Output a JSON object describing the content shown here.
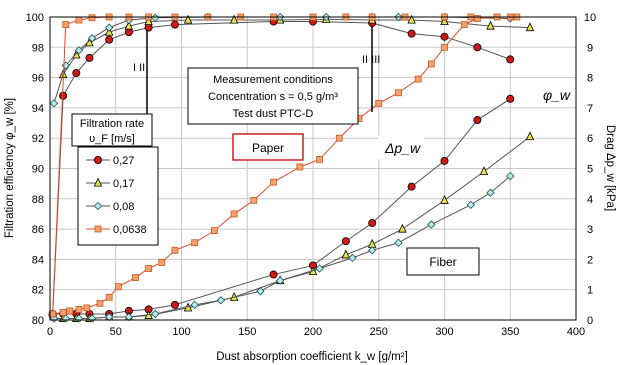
{
  "chart_data": {
    "type": "line",
    "xlabel": "Dust absorption coefficient k_w [g/m²]",
    "ylabel_left": "Filtration efficiency φ_w [%]",
    "ylabel_right": "Drag Δp_w [kPa]",
    "xlim": [
      0,
      400
    ],
    "ylim_left": [
      80,
      100
    ],
    "ylim_right": [
      0,
      10
    ],
    "x_ticks": [
      "0",
      "50",
      "100",
      "150",
      "200",
      "250",
      "300",
      "350",
      "400"
    ],
    "y_left_ticks": [
      "80",
      "82",
      "84",
      "86",
      "88",
      "90",
      "92",
      "94",
      "96",
      "98",
      "100"
    ],
    "y_right_ticks": [
      "0",
      "1",
      "2",
      "3",
      "4",
      "5",
      "6",
      "7",
      "8",
      "9",
      "10"
    ],
    "grid": true,
    "legend": {
      "title_line1": "Filtration rate",
      "title_line2": "υ_F [m/s]",
      "entries": [
        "0,27",
        "0,17",
        "0,08",
        "0,0638"
      ]
    },
    "annotations": {
      "conditions_line1": "Measurement conditions",
      "conditions_line2": "Concentration s = 0,5 g/m³",
      "conditions_line3": "Test dust PTC-D",
      "paper": "Paper",
      "fiber": "Fiber",
      "delta_p": "Δp_w",
      "phi": "φ_w",
      "marker_left": "I  II",
      "marker_right": "II III"
    },
    "series": [
      {
        "name": "0,27",
        "color": "#c00000",
        "marker": "circle",
        "efficiency": [
          [
            2,
            80.3
          ],
          [
            10,
            94.8
          ],
          [
            20,
            96.3
          ],
          [
            30,
            97.3
          ],
          [
            45,
            98.5
          ],
          [
            60,
            99.0
          ],
          [
            75,
            99.3
          ],
          [
            95,
            99.5
          ],
          [
            170,
            99.7
          ],
          [
            200,
            99.7
          ],
          [
            245,
            99.6
          ],
          [
            275,
            98.9
          ],
          [
            300,
            98.7
          ],
          [
            325,
            98.0
          ],
          [
            350,
            97.2
          ]
        ],
        "drag": [
          [
            2,
            0.2
          ],
          [
            10,
            0.2
          ],
          [
            20,
            0.2
          ],
          [
            30,
            0.2
          ],
          [
            45,
            0.2
          ],
          [
            60,
            0.3
          ],
          [
            75,
            0.35
          ],
          [
            95,
            0.5
          ],
          [
            170,
            1.5
          ],
          [
            200,
            1.8
          ],
          [
            225,
            2.6
          ],
          [
            245,
            3.2
          ],
          [
            275,
            4.4
          ],
          [
            300,
            5.25
          ],
          [
            325,
            6.6
          ],
          [
            350,
            7.3
          ]
        ]
      },
      {
        "name": "0,17",
        "color": "#a0a000",
        "marker": "triangle",
        "efficiency": [
          [
            10,
            96.2
          ],
          [
            20,
            97.5
          ],
          [
            30,
            98.3
          ],
          [
            45,
            99.0
          ],
          [
            60,
            99.4
          ],
          [
            75,
            99.7
          ],
          [
            105,
            99.8
          ],
          [
            140,
            99.8
          ],
          [
            175,
            99.8
          ],
          [
            210,
            99.85
          ],
          [
            245,
            99.8
          ],
          [
            275,
            99.8
          ],
          [
            300,
            99.7
          ],
          [
            335,
            99.4
          ],
          [
            365,
            99.3
          ]
        ],
        "drag": [
          [
            10,
            0.05
          ],
          [
            20,
            0.05
          ],
          [
            30,
            0.05
          ],
          [
            45,
            0.1
          ],
          [
            60,
            0.1
          ],
          [
            75,
            0.15
          ],
          [
            105,
            0.4
          ],
          [
            140,
            0.75
          ],
          [
            175,
            1.3
          ],
          [
            200,
            1.6
          ],
          [
            225,
            2.15
          ],
          [
            245,
            2.5
          ],
          [
            268,
            3.0
          ],
          [
            300,
            3.95
          ],
          [
            330,
            4.9
          ],
          [
            365,
            6.05
          ]
        ]
      },
      {
        "name": "0,08",
        "color": "#2f6f6f",
        "marker": "diamond",
        "efficiency": [
          [
            3,
            94.3
          ],
          [
            12,
            96.8
          ],
          [
            22,
            97.8
          ],
          [
            32,
            98.6
          ],
          [
            45,
            99.3
          ],
          [
            60,
            99.8
          ],
          [
            80,
            99.95
          ],
          [
            120,
            100
          ],
          [
            175,
            100
          ],
          [
            210,
            100
          ],
          [
            245,
            100
          ],
          [
            265,
            100
          ],
          [
            300,
            100
          ],
          [
            350,
            99.9
          ]
        ],
        "drag": [
          [
            3,
            0.05
          ],
          [
            12,
            0.05
          ],
          [
            22,
            0.05
          ],
          [
            32,
            0.05
          ],
          [
            45,
            0.1
          ],
          [
            60,
            0.1
          ],
          [
            80,
            0.2
          ],
          [
            110,
            0.5
          ],
          [
            130,
            0.65
          ],
          [
            160,
            0.95
          ],
          [
            175,
            1.3
          ],
          [
            205,
            1.7
          ],
          [
            230,
            2.05
          ],
          [
            245,
            2.3
          ],
          [
            265,
            2.55
          ],
          [
            290,
            3.15
          ],
          [
            320,
            3.8
          ],
          [
            335,
            4.2
          ],
          [
            350,
            4.75
          ]
        ]
      },
      {
        "name": "0,0638",
        "color": "#e07b39",
        "marker": "square",
        "efficiency": [
          [
            2,
            80.4
          ],
          [
            12,
            99.5
          ],
          [
            22,
            99.8
          ],
          [
            32,
            99.95
          ],
          [
            45,
            100
          ],
          [
            60,
            100
          ],
          [
            75,
            100
          ],
          [
            95,
            100
          ],
          [
            120,
            100
          ],
          [
            145,
            100
          ],
          [
            170,
            100
          ],
          [
            200,
            100
          ],
          [
            225,
            100
          ],
          [
            245,
            100
          ],
          [
            270,
            100
          ],
          [
            300,
            100
          ],
          [
            320,
            100
          ],
          [
            350,
            100
          ]
        ],
        "drag": [
          [
            2,
            0.2
          ],
          [
            10,
            0.25
          ],
          [
            15,
            0.3
          ],
          [
            22,
            0.35
          ],
          [
            28,
            0.4
          ],
          [
            38,
            0.55
          ],
          [
            45,
            0.75
          ],
          [
            52,
            1.1
          ],
          [
            65,
            1.4
          ],
          [
            75,
            1.7
          ],
          [
            85,
            1.9
          ],
          [
            95,
            2.3
          ],
          [
            110,
            2.55
          ],
          [
            125,
            2.95
          ],
          [
            140,
            3.5
          ],
          [
            155,
            3.95
          ],
          [
            170,
            4.55
          ],
          [
            190,
            5.05
          ],
          [
            205,
            5.3
          ],
          [
            220,
            6.0
          ],
          [
            235,
            6.65
          ],
          [
            250,
            7.15
          ],
          [
            265,
            7.5
          ],
          [
            280,
            7.95
          ],
          [
            290,
            8.45
          ],
          [
            300,
            9.0
          ],
          [
            315,
            9.75
          ],
          [
            325,
            9.95
          ],
          [
            340,
            10.0
          ],
          [
            355,
            10.0
          ]
        ]
      }
    ]
  }
}
